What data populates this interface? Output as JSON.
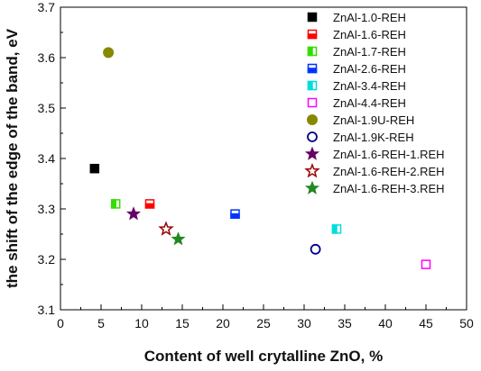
{
  "chart_data": {
    "type": "scatter",
    "xlabel": "Content of well crytalline ZnO,  %",
    "ylabel": "the shift of the edge of the band, eV",
    "xlim": [
      0,
      50
    ],
    "ylim": [
      3.1,
      3.7
    ],
    "xticks": [
      "0",
      "5",
      "10",
      "15",
      "20",
      "25",
      "30",
      "35",
      "40",
      "45",
      "50"
    ],
    "yticks": [
      "3.1",
      "3.2",
      "3.3",
      "3.4",
      "3.5",
      "3.6",
      "3.7"
    ],
    "grid": false,
    "legend_position": "top-right",
    "series": [
      {
        "name": "ZnAl-1.0-REH",
        "marker": "square-filled",
        "color": "#000000",
        "x": [
          4.2
        ],
        "y": [
          3.38
        ]
      },
      {
        "name": "ZnAl-1.6-REH",
        "marker": "square-bottom-half",
        "color": "#ff0000",
        "x": [
          11.0
        ],
        "y": [
          3.31
        ]
      },
      {
        "name": "ZnAl-1.7-REH",
        "marker": "square-left-half",
        "color": "#33dd00",
        "x": [
          6.8
        ],
        "y": [
          3.31
        ]
      },
      {
        "name": "ZnAl-2.6-REH",
        "marker": "square-bottom-half",
        "color": "#0033ff",
        "x": [
          21.5
        ],
        "y": [
          3.29
        ]
      },
      {
        "name": "ZnAl-3.4-REH",
        "marker": "square-left-half",
        "color": "#00dddd",
        "x": [
          34.0
        ],
        "y": [
          3.26
        ]
      },
      {
        "name": "ZnAl-4.4-REH",
        "marker": "square-open",
        "color": "#ff00ff",
        "x": [
          45.0
        ],
        "y": [
          3.19
        ]
      },
      {
        "name": "ZnAl-1.9U-REH",
        "marker": "circle-filled",
        "color": "#888800",
        "x": [
          5.9
        ],
        "y": [
          3.61
        ]
      },
      {
        "name": "ZnAl-1.9K-REH",
        "marker": "circle-open",
        "color": "#000088",
        "x": [
          31.4
        ],
        "y": [
          3.22
        ]
      },
      {
        "name": "ZnAl-1.6-REH-1.REH",
        "marker": "star-filled",
        "color": "#660066",
        "x": [
          9.0
        ],
        "y": [
          3.29
        ]
      },
      {
        "name": "ZnAl-1.6-REH-2.REH",
        "marker": "star-open",
        "color": "#990000",
        "x": [
          13.0
        ],
        "y": [
          3.26
        ]
      },
      {
        "name": "ZnAl-1.6-REH-3.REH",
        "marker": "star-filled",
        "color": "#228822",
        "x": [
          14.5
        ],
        "y": [
          3.24
        ]
      }
    ]
  }
}
